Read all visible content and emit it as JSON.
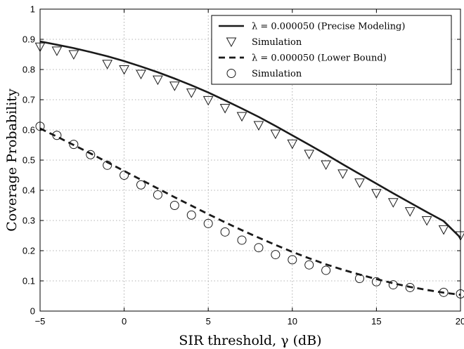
{
  "chart_data": {
    "type": "line",
    "title": "",
    "xlabel": "SIR threshold, γ (dB)",
    "ylabel": "Coverage Probability",
    "xlim": [
      -5,
      20
    ],
    "ylim": [
      0,
      1
    ],
    "xticks": [
      "−5",
      "0",
      "5",
      "10",
      "15",
      "20"
    ],
    "yticks": [
      "0",
      "0.1",
      "0.2",
      "0.3",
      "0.4",
      "0.5",
      "0.6",
      "0.7",
      "0.8",
      "0.9",
      "1"
    ],
    "grid": true,
    "legend_position": "top-right",
    "series": [
      {
        "name": "λ = 0.000050 (Precise Modeling)",
        "style": "solid-line",
        "color": "#1a1a1a",
        "x": [
          -5,
          -4,
          -3,
          -2,
          -1,
          0,
          1,
          2,
          3,
          4,
          5,
          6,
          7,
          8,
          9,
          10,
          11,
          12,
          13,
          14,
          15,
          16,
          17,
          18,
          19,
          20
        ],
        "y": [
          0.893,
          0.882,
          0.871,
          0.858,
          0.844,
          0.828,
          0.81,
          0.791,
          0.77,
          0.748,
          0.724,
          0.698,
          0.671,
          0.643,
          0.613,
          0.582,
          0.551,
          0.519,
          0.486,
          0.454,
          0.422,
          0.39,
          0.359,
          0.328,
          0.298,
          0.243
        ]
      },
      {
        "name": "Simulation",
        "style": "triangle-marker",
        "color": "#1a1a1a",
        "x": [
          -5,
          -4,
          -3,
          -1,
          0,
          1,
          2,
          3,
          4,
          5,
          6,
          7,
          8,
          9,
          10,
          11,
          12,
          13,
          14,
          15,
          16,
          17,
          18,
          19,
          20
        ],
        "y": [
          0.875,
          0.862,
          0.85,
          0.818,
          0.8,
          0.785,
          0.766,
          0.746,
          0.723,
          0.698,
          0.672,
          0.645,
          0.615,
          0.587,
          0.554,
          0.52,
          0.485,
          0.455,
          0.425,
          0.39,
          0.36,
          0.33,
          0.3,
          0.27,
          0.25
        ]
      },
      {
        "name": "λ = 0.000050 (Lower Bound)",
        "style": "dashed-line",
        "color": "#1a1a1a",
        "x": [
          -5,
          -4,
          -3,
          -2,
          -1,
          0,
          1,
          2,
          3,
          4,
          5,
          6,
          7,
          8,
          9,
          10,
          11,
          12,
          13,
          14,
          15,
          16,
          17,
          18,
          19,
          20
        ],
        "y": [
          0.605,
          0.578,
          0.55,
          0.522,
          0.493,
          0.464,
          0.435,
          0.406,
          0.377,
          0.349,
          0.321,
          0.294,
          0.268,
          0.243,
          0.219,
          0.196,
          0.175,
          0.155,
          0.137,
          0.121,
          0.106,
          0.092,
          0.08,
          0.07,
          0.061,
          0.054
        ]
      },
      {
        "name": "Simulation",
        "style": "circle-marker",
        "color": "#1a1a1a",
        "x": [
          -5,
          -4,
          -3,
          -2,
          -1,
          0,
          1,
          2,
          3,
          4,
          5,
          6,
          7,
          8,
          9,
          10,
          11,
          12,
          14,
          15,
          16,
          17,
          19,
          20
        ],
        "y": [
          0.612,
          0.582,
          0.552,
          0.518,
          0.483,
          0.45,
          0.418,
          0.385,
          0.35,
          0.318,
          0.29,
          0.262,
          0.235,
          0.21,
          0.187,
          0.17,
          0.153,
          0.135,
          0.108,
          0.097,
          0.087,
          0.078,
          0.062,
          0.057
        ]
      }
    ]
  }
}
